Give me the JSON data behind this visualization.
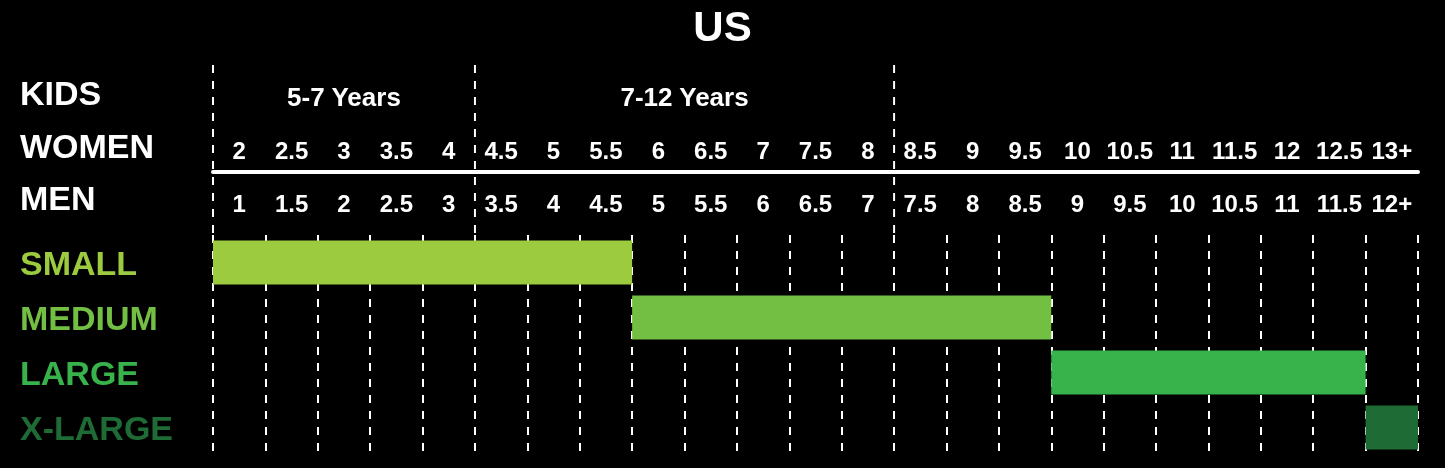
{
  "chart_data": {
    "type": "bar",
    "orientation": "horizontal",
    "title": "US",
    "xlabel": "WOMEN",
    "x2label": "MEN",
    "annotations": [
      "KIDS",
      "5-7 Years",
      "7-12 Years"
    ],
    "categories": [
      "SMALL",
      "MEDIUM",
      "LARGE",
      "X-LARGE"
    ],
    "base": [
      1.75,
      5.75,
      9.75,
      12.75
    ],
    "values": [
      4,
      4,
      3,
      0.5
    ],
    "colors": [
      "#9ccb3f",
      "#72bf44",
      "#38b24a",
      "#1e6b35"
    ],
    "xlim": [
      1.75,
      13.25
    ],
    "xticks": [
      2,
      2.5,
      3,
      3.5,
      4,
      4.5,
      5,
      5.5,
      6,
      6.5,
      7,
      7.5,
      8,
      8.5,
      9,
      9.5,
      10,
      10.5,
      11,
      11.5,
      12,
      12.5,
      {
        "value": 13,
        "label": "13+"
      }
    ],
    "x2lim": [
      0.75,
      12.25
    ],
    "x2ticks": [
      1,
      1.5,
      2,
      2.5,
      3,
      3.5,
      4,
      4.5,
      5,
      5.5,
      6,
      6.5,
      7,
      7.5,
      8,
      8.5,
      9,
      9.5,
      10,
      10.5,
      11,
      11.5,
      {
        "value": 12,
        "label": "12+"
      }
    ],
    "ref_lines": [
      {
        "axis": "x",
        "value": 1.75,
        "line_style": "dashed"
      },
      {
        "axis": "x",
        "value": 4.25,
        "line_style": "dashed"
      },
      {
        "axis": "x",
        "value": 8.25,
        "line_style": "dashed"
      }
    ],
    "grid": "x"
  }
}
